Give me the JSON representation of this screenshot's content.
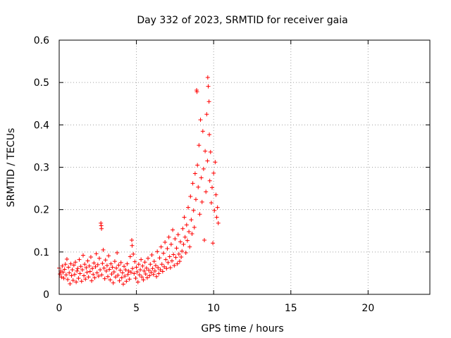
{
  "colors": {
    "points": "#ff0000",
    "axis": "#000000",
    "grid": "#a0a0a0"
  },
  "chart_data": {
    "type": "scatter",
    "title": "Day 332 of 2023, SRMTID for receiver gaia",
    "xlabel": "GPS time / hours",
    "ylabel": "SRMTID / TECUs",
    "xlim": [
      0,
      24
    ],
    "ylim": [
      0,
      0.6
    ],
    "grid": true,
    "marker": "+",
    "xticks": [
      0,
      5,
      10,
      15,
      20
    ],
    "xtick_labels": [
      "0",
      "5",
      "10",
      "15",
      "20"
    ],
    "yticks": [
      0,
      0.1,
      0.2,
      0.3,
      0.4,
      0.5,
      0.6
    ],
    "ytick_labels": [
      "0",
      "0.1",
      "0.2",
      "0.3",
      "0.4",
      "0.5",
      "0.6"
    ],
    "series": [
      {
        "name": "SRMTID",
        "points": [
          [
            0.0,
            0.062
          ],
          [
            0.05,
            0.048
          ],
          [
            0.1,
            0.055
          ],
          [
            0.15,
            0.041
          ],
          [
            0.2,
            0.067
          ],
          [
            0.25,
            0.052
          ],
          [
            0.3,
            0.038
          ],
          [
            0.35,
            0.059
          ],
          [
            0.4,
            0.071
          ],
          [
            0.45,
            0.046
          ],
          [
            0.5,
            0.083
          ],
          [
            0.55,
            0.035
          ],
          [
            0.6,
            0.064
          ],
          [
            0.65,
            0.051
          ],
          [
            0.7,
            0.025
          ],
          [
            0.75,
            0.072
          ],
          [
            0.8,
            0.044
          ],
          [
            0.85,
            0.058
          ],
          [
            0.9,
            0.033
          ],
          [
            0.95,
            0.069
          ],
          [
            1.0,
            0.047
          ],
          [
            1.05,
            0.076
          ],
          [
            1.1,
            0.029
          ],
          [
            1.15,
            0.055
          ],
          [
            1.2,
            0.061
          ],
          [
            1.25,
            0.038
          ],
          [
            1.3,
            0.082
          ],
          [
            1.35,
            0.049
          ],
          [
            1.4,
            0.066
          ],
          [
            1.45,
            0.031
          ],
          [
            1.5,
            0.058
          ],
          [
            1.55,
            0.092
          ],
          [
            1.6,
            0.044
          ],
          [
            1.65,
            0.071
          ],
          [
            1.7,
            0.036
          ],
          [
            1.75,
            0.063
          ],
          [
            1.8,
            0.052
          ],
          [
            1.85,
            0.079
          ],
          [
            1.9,
            0.041
          ],
          [
            1.95,
            0.067
          ],
          [
            2.0,
            0.054
          ],
          [
            2.05,
            0.088
          ],
          [
            2.1,
            0.032
          ],
          [
            2.15,
            0.061
          ],
          [
            2.2,
            0.047
          ],
          [
            2.25,
            0.074
          ],
          [
            2.3,
            0.039
          ],
          [
            2.35,
            0.065
          ],
          [
            2.4,
            0.096
          ],
          [
            2.45,
            0.051
          ],
          [
            2.5,
            0.07
          ],
          [
            2.55,
            0.043
          ],
          [
            2.6,
            0.085
          ],
          [
            2.65,
            0.058
          ],
          [
            2.7,
            0.168
          ],
          [
            2.72,
            0.162
          ],
          [
            2.74,
            0.155
          ],
          [
            2.75,
            0.046
          ],
          [
            2.8,
            0.073
          ],
          [
            2.85,
            0.105
          ],
          [
            2.9,
            0.062
          ],
          [
            2.95,
            0.037
          ],
          [
            3.0,
            0.081
          ],
          [
            3.05,
            0.055
          ],
          [
            3.1,
            0.068
          ],
          [
            3.15,
            0.042
          ],
          [
            3.2,
            0.091
          ],
          [
            3.25,
            0.059
          ],
          [
            3.3,
            0.034
          ],
          [
            3.35,
            0.072
          ],
          [
            3.4,
            0.048
          ],
          [
            3.45,
            0.064
          ],
          [
            3.5,
            0.027
          ],
          [
            3.55,
            0.053
          ],
          [
            3.6,
            0.078
          ],
          [
            3.65,
            0.041
          ],
          [
            3.7,
            0.062
          ],
          [
            3.75,
            0.098
          ],
          [
            3.8,
            0.045
          ],
          [
            3.85,
            0.069
          ],
          [
            3.9,
            0.032
          ],
          [
            3.95,
            0.057
          ],
          [
            4.0,
            0.075
          ],
          [
            4.05,
            0.039
          ],
          [
            4.1,
            0.051
          ],
          [
            4.15,
            0.024
          ],
          [
            4.2,
            0.066
          ],
          [
            4.25,
            0.043
          ],
          [
            4.3,
            0.058
          ],
          [
            4.35,
            0.031
          ],
          [
            4.4,
            0.072
          ],
          [
            4.45,
            0.047
          ],
          [
            4.5,
            0.055
          ],
          [
            4.55,
            0.036
          ],
          [
            4.6,
            0.089
          ],
          [
            4.65,
            0.052
          ],
          [
            4.7,
            0.128
          ],
          [
            4.72,
            0.115
          ],
          [
            4.75,
            0.061
          ],
          [
            4.8,
            0.095
          ],
          [
            4.85,
            0.049
          ],
          [
            4.9,
            0.077
          ],
          [
            4.95,
            0.038
          ],
          [
            5.0,
            0.064
          ],
          [
            5.05,
            0.053
          ],
          [
            5.1,
            0.029
          ],
          [
            5.15,
            0.071
          ],
          [
            5.2,
            0.046
          ],
          [
            5.25,
            0.058
          ],
          [
            5.3,
            0.082
          ],
          [
            5.35,
            0.041
          ],
          [
            5.4,
            0.067
          ],
          [
            5.45,
            0.034
          ],
          [
            5.5,
            0.055
          ],
          [
            5.55,
            0.076
          ],
          [
            5.6,
            0.048
          ],
          [
            5.65,
            0.062
          ],
          [
            5.7,
            0.039
          ],
          [
            5.75,
            0.085
          ],
          [
            5.8,
            0.057
          ],
          [
            5.85,
            0.044
          ],
          [
            5.9,
            0.071
          ],
          [
            5.95,
            0.052
          ],
          [
            6.0,
            0.093
          ],
          [
            6.05,
            0.061
          ],
          [
            6.1,
            0.047
          ],
          [
            6.15,
            0.078
          ],
          [
            6.2,
            0.055
          ],
          [
            6.25,
            0.068
          ],
          [
            6.3,
            0.042
          ],
          [
            6.35,
            0.101
          ],
          [
            6.4,
            0.063
          ],
          [
            6.45,
            0.049
          ],
          [
            6.5,
            0.086
          ],
          [
            6.55,
            0.058
          ],
          [
            6.6,
            0.112
          ],
          [
            6.65,
            0.071
          ],
          [
            6.7,
            0.054
          ],
          [
            6.75,
            0.097
          ],
          [
            6.8,
            0.065
          ],
          [
            6.85,
            0.123
          ],
          [
            6.9,
            0.082
          ],
          [
            6.95,
            0.061
          ],
          [
            7.0,
            0.108
          ],
          [
            7.05,
            0.075
          ],
          [
            7.1,
            0.135
          ],
          [
            7.15,
            0.089
          ],
          [
            7.2,
            0.063
          ],
          [
            7.25,
            0.118
          ],
          [
            7.3,
            0.079
          ],
          [
            7.35,
            0.152
          ],
          [
            7.4,
            0.094
          ],
          [
            7.45,
            0.068
          ],
          [
            7.5,
            0.131
          ],
          [
            7.55,
            0.087
          ],
          [
            7.6,
            0.109
          ],
          [
            7.65,
            0.072
          ],
          [
            7.7,
            0.141
          ],
          [
            7.75,
            0.095
          ],
          [
            7.8,
            0.078
          ],
          [
            7.85,
            0.124
          ],
          [
            7.9,
            0.088
          ],
          [
            7.95,
            0.102
          ],
          [
            8.0,
            0.155
          ],
          [
            8.05,
            0.118
          ],
          [
            8.1,
            0.182
          ],
          [
            8.15,
            0.135
          ],
          [
            8.2,
            0.098
          ],
          [
            8.25,
            0.164
          ],
          [
            8.3,
            0.127
          ],
          [
            8.35,
            0.205
          ],
          [
            8.4,
            0.148
          ],
          [
            8.45,
            0.112
          ],
          [
            8.5,
            0.231
          ],
          [
            8.55,
            0.176
          ],
          [
            8.6,
            0.143
          ],
          [
            8.65,
            0.262
          ],
          [
            8.7,
            0.198
          ],
          [
            8.75,
            0.158
          ],
          [
            8.8,
            0.285
          ],
          [
            8.85,
            0.224
          ],
          [
            8.9,
            0.482
          ],
          [
            8.92,
            0.478
          ],
          [
            8.95,
            0.305
          ],
          [
            9.0,
            0.253
          ],
          [
            9.05,
            0.352
          ],
          [
            9.1,
            0.189
          ],
          [
            9.15,
            0.412
          ],
          [
            9.2,
            0.275
          ],
          [
            9.25,
            0.218
          ],
          [
            9.3,
            0.385
          ],
          [
            9.35,
            0.296
          ],
          [
            9.4,
            0.128
          ],
          [
            9.45,
            0.338
          ],
          [
            9.5,
            0.242
          ],
          [
            9.55,
            0.425
          ],
          [
            9.6,
            0.315
          ],
          [
            9.62,
            0.512
          ],
          [
            9.65,
            0.491
          ],
          [
            9.7,
            0.455
          ],
          [
            9.72,
            0.377
          ],
          [
            9.75,
            0.268
          ],
          [
            9.8,
            0.336
          ],
          [
            9.85,
            0.216
          ],
          [
            9.9,
            0.252
          ],
          [
            9.95,
            0.121
          ],
          [
            10.0,
            0.286
          ],
          [
            10.05,
            0.198
          ],
          [
            10.1,
            0.312
          ],
          [
            10.15,
            0.235
          ],
          [
            10.2,
            0.182
          ],
          [
            10.25,
            0.205
          ],
          [
            10.3,
            0.168
          ]
        ]
      }
    ]
  }
}
